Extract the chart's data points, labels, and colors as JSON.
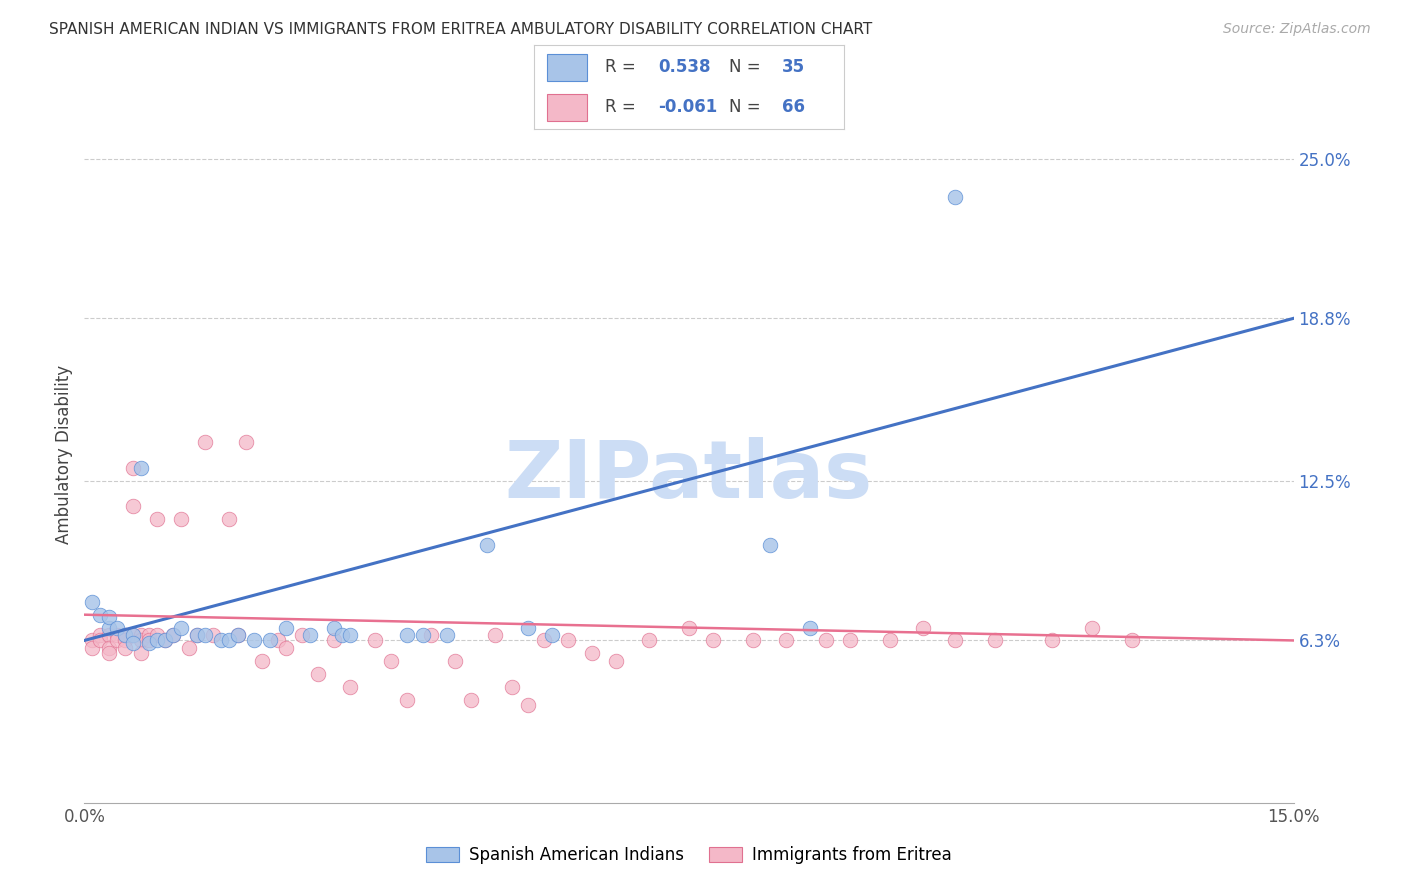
{
  "title": "SPANISH AMERICAN INDIAN VS IMMIGRANTS FROM ERITREA AMBULATORY DISABILITY CORRELATION CHART",
  "source": "Source: ZipAtlas.com",
  "ylabel": "Ambulatory Disability",
  "xlim": [
    0.0,
    0.15
  ],
  "ylim": [
    0.0,
    0.27
  ],
  "xtick_positions": [
    0.0,
    0.03,
    0.06,
    0.09,
    0.12,
    0.15
  ],
  "xticklabels": [
    "0.0%",
    "",
    "",
    "",
    "",
    "15.0%"
  ],
  "ytick_positions": [
    0.063,
    0.125,
    0.188,
    0.25
  ],
  "ytick_labels": [
    "6.3%",
    "12.5%",
    "18.8%",
    "25.0%"
  ],
  "blue_R": "0.538",
  "blue_N": "35",
  "pink_R": "-0.061",
  "pink_N": "66",
  "blue_scatter_color": "#a8c4e8",
  "blue_line_color": "#4472c4",
  "blue_edge_color": "#5b8fd6",
  "pink_scatter_color": "#f4b8c8",
  "pink_line_color": "#e87090",
  "pink_edge_color": "#e07090",
  "legend_blue_label": "Spanish American Indians",
  "legend_pink_label": "Immigrants from Eritrea",
  "watermark": "ZIPatlas",
  "watermark_color": "#ccddf5",
  "blue_line_x0": 0.0,
  "blue_line_y0": 0.063,
  "blue_line_x1": 0.15,
  "blue_line_y1": 0.188,
  "pink_line_x0": 0.0,
  "pink_line_y0": 0.073,
  "pink_line_x1": 0.15,
  "pink_line_y1": 0.063,
  "blue_scatter_x": [
    0.001,
    0.002,
    0.003,
    0.003,
    0.004,
    0.005,
    0.006,
    0.006,
    0.007,
    0.008,
    0.009,
    0.01,
    0.011,
    0.012,
    0.014,
    0.015,
    0.017,
    0.018,
    0.019,
    0.021,
    0.023,
    0.025,
    0.028,
    0.031,
    0.032,
    0.033,
    0.04,
    0.042,
    0.045,
    0.05,
    0.055,
    0.058,
    0.085,
    0.09,
    0.108
  ],
  "blue_scatter_y": [
    0.078,
    0.073,
    0.068,
    0.072,
    0.068,
    0.065,
    0.065,
    0.062,
    0.13,
    0.062,
    0.063,
    0.063,
    0.065,
    0.068,
    0.065,
    0.065,
    0.063,
    0.063,
    0.065,
    0.063,
    0.063,
    0.068,
    0.065,
    0.068,
    0.065,
    0.065,
    0.065,
    0.065,
    0.065,
    0.1,
    0.068,
    0.065,
    0.1,
    0.068,
    0.235
  ],
  "pink_scatter_x": [
    0.001,
    0.001,
    0.002,
    0.002,
    0.003,
    0.003,
    0.003,
    0.004,
    0.004,
    0.005,
    0.005,
    0.005,
    0.006,
    0.006,
    0.006,
    0.007,
    0.007,
    0.007,
    0.008,
    0.008,
    0.009,
    0.009,
    0.01,
    0.011,
    0.012,
    0.013,
    0.014,
    0.015,
    0.016,
    0.018,
    0.019,
    0.02,
    0.022,
    0.024,
    0.025,
    0.027,
    0.029,
    0.031,
    0.033,
    0.036,
    0.038,
    0.04,
    0.043,
    0.046,
    0.048,
    0.051,
    0.053,
    0.055,
    0.057,
    0.06,
    0.063,
    0.066,
    0.07,
    0.075,
    0.078,
    0.083,
    0.087,
    0.092,
    0.095,
    0.1,
    0.104,
    0.108,
    0.113,
    0.12,
    0.125,
    0.13
  ],
  "pink_scatter_y": [
    0.063,
    0.06,
    0.065,
    0.063,
    0.065,
    0.06,
    0.058,
    0.065,
    0.063,
    0.065,
    0.063,
    0.06,
    0.13,
    0.115,
    0.065,
    0.065,
    0.063,
    0.058,
    0.065,
    0.063,
    0.11,
    0.065,
    0.063,
    0.065,
    0.11,
    0.06,
    0.065,
    0.14,
    0.065,
    0.11,
    0.065,
    0.14,
    0.055,
    0.063,
    0.06,
    0.065,
    0.05,
    0.063,
    0.045,
    0.063,
    0.055,
    0.04,
    0.065,
    0.055,
    0.04,
    0.065,
    0.045,
    0.038,
    0.063,
    0.063,
    0.058,
    0.055,
    0.063,
    0.068,
    0.063,
    0.063,
    0.063,
    0.063,
    0.063,
    0.063,
    0.068,
    0.063,
    0.063,
    0.063,
    0.068,
    0.063
  ]
}
